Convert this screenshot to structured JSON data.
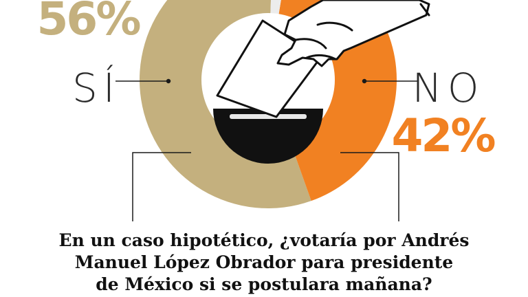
{
  "question_lines": [
    "En un caso hipotético, ¿votaría por Andrés",
    "Manuel López Obrador para presidente",
    "de México si se postulara mañana?"
  ],
  "chart_data": {
    "type": "pie",
    "variant": "donut",
    "slices": [
      {
        "label": "SÍ",
        "value": 56,
        "value_label": "56%",
        "color": "#c4b07e"
      },
      {
        "label": "NO",
        "value": 42,
        "value_label": "42%",
        "color": "#f18122"
      },
      {
        "label": "",
        "value": 2,
        "color": "#ececec"
      }
    ],
    "legend": "none",
    "grid": false
  },
  "colors": {
    "si_text": "#c4b07e",
    "no_text": "#f18122",
    "label_text": "#2b2b2b",
    "ballot_box": "#111111"
  }
}
